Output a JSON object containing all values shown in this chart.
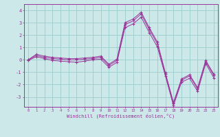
{
  "x": [
    0,
    1,
    2,
    3,
    4,
    5,
    6,
    7,
    8,
    9,
    10,
    11,
    12,
    13,
    14,
    15,
    16,
    17,
    18,
    19,
    20,
    21,
    22,
    23
  ],
  "line1": [
    0.0,
    0.45,
    0.3,
    0.2,
    0.15,
    0.1,
    0.1,
    0.15,
    0.2,
    0.3,
    -0.35,
    0.05,
    3.0,
    3.3,
    3.85,
    2.6,
    1.45,
    -1.05,
    -3.45,
    -1.55,
    -1.2,
    -2.25,
    -0.05,
    -1.15
  ],
  "line2": [
    0.0,
    0.35,
    0.2,
    0.1,
    0.05,
    0.0,
    0.0,
    0.05,
    0.1,
    0.2,
    -0.45,
    -0.05,
    2.85,
    3.15,
    3.7,
    2.45,
    1.3,
    -1.15,
    -3.55,
    -1.65,
    -1.3,
    -2.35,
    -0.15,
    -1.25
  ],
  "line3": [
    -0.05,
    0.25,
    0.1,
    -0.05,
    -0.1,
    -0.15,
    -0.2,
    -0.1,
    0.0,
    0.05,
    -0.6,
    -0.2,
    2.6,
    2.9,
    3.45,
    2.2,
    1.05,
    -1.3,
    -3.7,
    -1.8,
    -1.5,
    -2.55,
    -0.3,
    -1.45
  ],
  "bg_color": "#cce8e8",
  "line_color": "#993399",
  "grid_color": "#99cccc",
  "xlabel": "Windchill (Refroidissement éolien,°C)",
  "yticks": [
    -3,
    -2,
    -1,
    0,
    1,
    2,
    3,
    4
  ],
  "ylim": [
    -3.8,
    4.5
  ],
  "xlim": [
    -0.5,
    23.5
  ],
  "figwidth": 3.2,
  "figheight": 2.0,
  "dpi": 100
}
